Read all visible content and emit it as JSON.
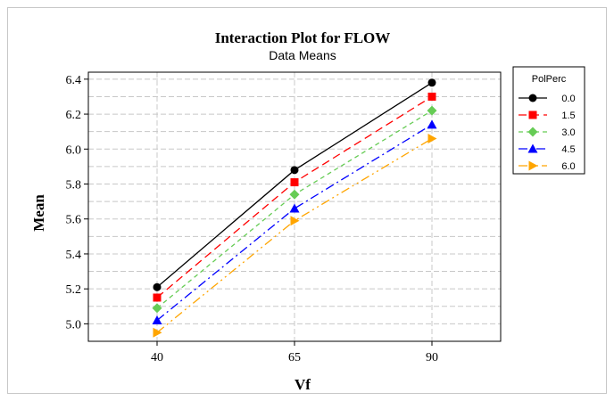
{
  "chart_data": {
    "type": "line",
    "title": "Interaction Plot for FLOW",
    "subtitle": "Data Means",
    "xlabel": "Vf",
    "ylabel": "Mean",
    "categories": [
      "40",
      "65",
      "90"
    ],
    "ylim": [
      4.9,
      6.44
    ],
    "yticks": [
      5.0,
      5.2,
      5.4,
      5.6,
      5.8,
      6.0,
      6.2,
      6.4
    ],
    "ytick_labels": [
      "5.0",
      "5.2",
      "5.4",
      "5.6",
      "5.8",
      "6.0",
      "6.2",
      "6.4"
    ],
    "grid": true,
    "legend_title": "PolPerc",
    "legend_position": "right",
    "series": [
      {
        "name": "0.0",
        "values": [
          5.21,
          5.88,
          6.38
        ],
        "color": "#000000",
        "marker": "circle",
        "dash": "none"
      },
      {
        "name": "1.5",
        "values": [
          5.15,
          5.81,
          6.3
        ],
        "color": "#ff0000",
        "marker": "square",
        "dash": "9,5"
      },
      {
        "name": "3.0",
        "values": [
          5.09,
          5.74,
          6.22
        ],
        "color": "#66cc55",
        "marker": "diamond",
        "dash": "5,4"
      },
      {
        "name": "4.5",
        "values": [
          5.02,
          5.66,
          6.14
        ],
        "color": "#0000ff",
        "marker": "triangle",
        "dash": "10,4,2,4"
      },
      {
        "name": "6.0",
        "values": [
          4.95,
          5.59,
          6.06
        ],
        "color": "#ffa500",
        "marker": "triangle-right",
        "dash": "10,4,2,4,2,4"
      }
    ]
  }
}
